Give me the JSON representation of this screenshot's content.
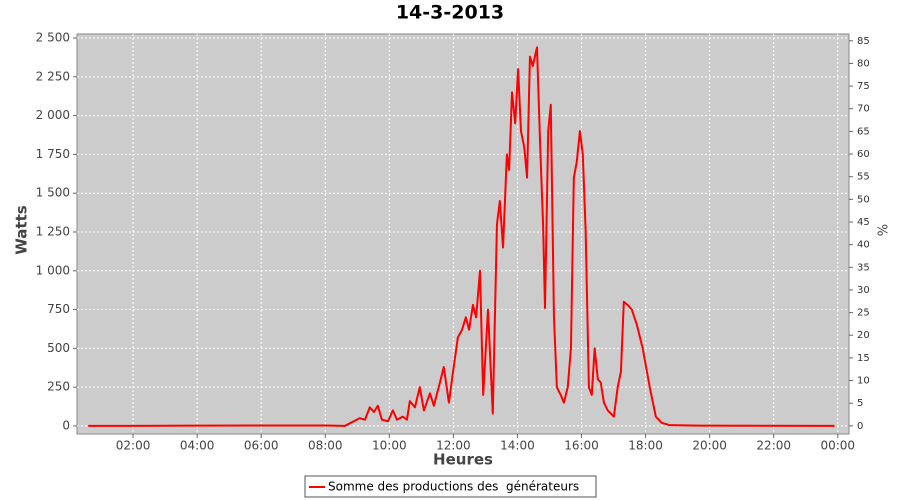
{
  "chart_data": {
    "type": "line",
    "title": "14-3-2013",
    "x_label": "Heures",
    "y_label": "Watts",
    "y2_label": "%",
    "x": [
      0.6,
      4.0,
      8.0,
      8.61,
      9.08,
      9.24,
      9.39,
      9.52,
      9.64,
      9.77,
      9.96,
      10.11,
      10.24,
      10.42,
      10.55,
      10.64,
      10.8,
      10.95,
      11.08,
      11.27,
      11.39,
      11.58,
      11.7,
      11.86,
      11.99,
      12.14,
      12.27,
      12.39,
      12.49,
      12.61,
      12.71,
      12.83,
      12.93,
      13.08,
      13.23,
      13.36,
      13.45,
      13.55,
      13.67,
      13.74,
      13.83,
      13.93,
      14.02,
      14.11,
      14.21,
      14.3,
      14.39,
      14.48,
      14.61,
      14.71,
      14.8,
      14.86,
      14.96,
      15.04,
      15.14,
      15.23,
      15.35,
      15.45,
      15.57,
      15.67,
      15.76,
      15.85,
      15.95,
      16.04,
      16.13,
      16.23,
      16.32,
      16.41,
      16.51,
      16.6,
      16.7,
      16.82,
      17.01,
      17.13,
      17.23,
      17.32,
      17.44,
      17.57,
      17.73,
      17.91,
      18.13,
      18.32,
      18.5,
      18.76,
      19.69,
      23.9
    ],
    "series": [
      {
        "name": "Somme des productions des  générateurs",
        "color": "#ff0000",
        "values": [
          0,
          2,
          3,
          0,
          50,
          40,
          120,
          90,
          130,
          40,
          30,
          100,
          40,
          60,
          40,
          160,
          120,
          250,
          100,
          210,
          130,
          280,
          380,
          150,
          350,
          570,
          620,
          700,
          620,
          780,
          700,
          1000,
          200,
          750,
          80,
          1300,
          1450,
          1150,
          1750,
          1650,
          2150,
          1950,
          2300,
          1900,
          1800,
          1600,
          2380,
          2320,
          2440,
          1800,
          1300,
          760,
          1900,
          2070,
          700,
          250,
          200,
          150,
          250,
          500,
          1600,
          1700,
          1900,
          1750,
          1250,
          250,
          200,
          500,
          300,
          280,
          150,
          100,
          60,
          250,
          350,
          800,
          780,
          750,
          650,
          500,
          250,
          60,
          20,
          5,
          2,
          0
        ]
      }
    ],
    "xlim": [
      0.25,
      24.35
    ],
    "xticks": [
      {
        "value": 2,
        "label": "02:00"
      },
      {
        "value": 4,
        "label": "04:00"
      },
      {
        "value": 6,
        "label": "06:00"
      },
      {
        "value": 8,
        "label": "08:00"
      },
      {
        "value": 10,
        "label": "10:00"
      },
      {
        "value": 12,
        "label": "12:00"
      },
      {
        "value": 14,
        "label": "14:00"
      },
      {
        "value": 16,
        "label": "16:00"
      },
      {
        "value": 18,
        "label": "18:00"
      },
      {
        "value": 20,
        "label": "20:00"
      },
      {
        "value": 22,
        "label": "22:00"
      },
      {
        "value": 24,
        "label": "00:00"
      }
    ],
    "ylim": [
      -52,
      2526
    ],
    "yticks": [
      0,
      250,
      500,
      750,
      {
        "value": 1000,
        "label": "1 000"
      },
      {
        "value": 1250,
        "label": "1 250"
      },
      {
        "value": 1500,
        "label": "1 500"
      },
      {
        "value": 1750,
        "label": "1 750"
      },
      {
        "value": 2000,
        "label": "2 000"
      },
      {
        "value": 2250,
        "label": "2 250"
      },
      {
        "value": 2500,
        "label": "2 500"
      }
    ],
    "y2lim": [
      -1.8,
      86.5
    ],
    "y2ticks": [
      0,
      5,
      10,
      15,
      20,
      25,
      30,
      35,
      40,
      45,
      50,
      55,
      60,
      65,
      70,
      75,
      80,
      85
    ],
    "grid": true,
    "background": "#cccccc",
    "legend": "bottom"
  }
}
